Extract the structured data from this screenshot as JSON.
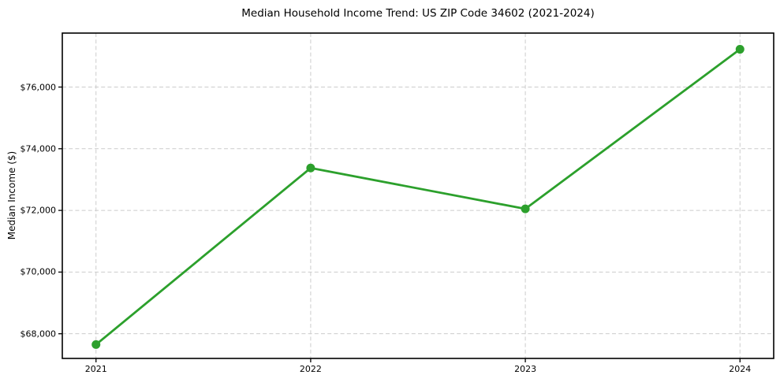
{
  "chart_data": {
    "type": "line",
    "title": "Median Household Income Trend: US ZIP Code 34602 (2021-2024)",
    "xlabel": "",
    "ylabel": "Median Income ($)",
    "x": [
      2021,
      2022,
      2023,
      2024
    ],
    "x_tick_labels": [
      "2021",
      "2022",
      "2023",
      "2024"
    ],
    "y_ticks": [
      68000,
      70000,
      72000,
      74000,
      76000
    ],
    "y_tick_labels": [
      "$68,000",
      "$70,000",
      "$72,000",
      "$74,000",
      "$76,000"
    ],
    "series": [
      {
        "name": "Median Household Income",
        "values": [
          67650,
          73375,
          72050,
          77225
        ],
        "color": "#2ca02c",
        "marker": "circle"
      }
    ],
    "xlim": [
      2020.843,
      2024.157
    ],
    "ylim": [
      67200,
      77750
    ],
    "grid": true,
    "grid_style": "dashed",
    "grid_color": "#cccccc",
    "legend": "none",
    "spine_color": "#000000",
    "background_color": "#ffffff"
  }
}
